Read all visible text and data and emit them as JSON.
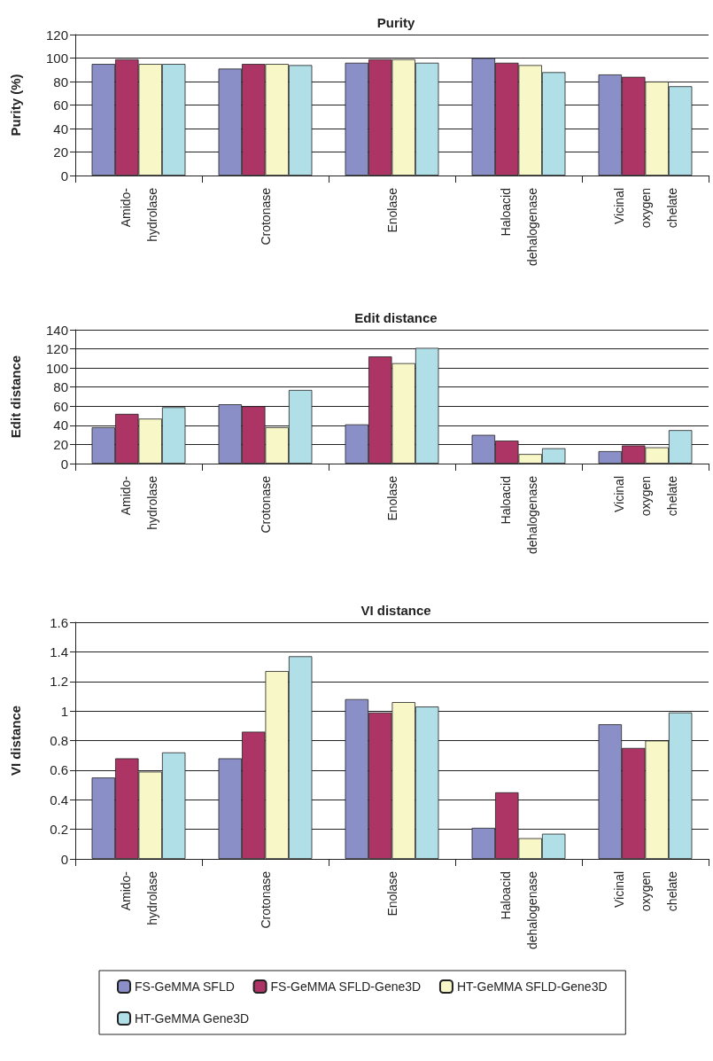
{
  "chart_data": [
    {
      "type": "bar",
      "title": "Purity",
      "ylabel": "Purity (%)",
      "categories": [
        "Amido-\nhydrolase",
        "Crotonase",
        "Enolase",
        "Haloacid\ndehalogenase",
        "Vicinal\noxygen\nchelate"
      ],
      "ylim": [
        0,
        120
      ],
      "yticks": [
        0,
        20,
        40,
        60,
        80,
        100,
        120
      ],
      "grid": "y",
      "legend": false,
      "series": [
        {
          "color": "#8b8fc8",
          "values": [
            95,
            91,
            96,
            100,
            86
          ]
        },
        {
          "color": "#ad3566",
          "values": [
            99,
            95,
            99,
            96,
            84
          ]
        },
        {
          "color": "#f8f7c8",
          "values": [
            95,
            95,
            99,
            94,
            80
          ]
        },
        {
          "color": "#b0dfe8",
          "values": [
            95,
            94,
            96,
            88,
            76
          ]
        }
      ]
    },
    {
      "type": "bar",
      "title": "Edit distance",
      "ylabel": "Edit distance",
      "categories": [
        "Amido-\nhydrolase",
        "Crotonase",
        "Enolase",
        "Haloacid\ndehalogenase",
        "Vicinal\noxygen\nchelate"
      ],
      "ylim": [
        0,
        140
      ],
      "yticks": [
        0,
        20,
        40,
        60,
        80,
        100,
        120,
        140
      ],
      "grid": "y",
      "legend": false,
      "series": [
        {
          "color": "#8b8fc8",
          "values": [
            38,
            62,
            41,
            30,
            13
          ]
        },
        {
          "color": "#ad3566",
          "values": [
            52,
            60,
            112,
            24,
            19
          ]
        },
        {
          "color": "#f8f7c8",
          "values": [
            47,
            38,
            105,
            10,
            17
          ]
        },
        {
          "color": "#b0dfe8",
          "values": [
            59,
            77,
            121,
            16,
            35
          ]
        }
      ]
    },
    {
      "type": "bar",
      "title": "VI distance",
      "ylabel": "VI distance",
      "categories": [
        "Amido-\nhydrolase",
        "Crotonase",
        "Enolase",
        "Haloacid\ndehalogenase",
        "Vicinal\noxygen\nchelate"
      ],
      "ylim": [
        0,
        1.6
      ],
      "yticks": [
        0,
        0.2,
        0.4,
        0.6,
        0.8,
        1,
        1.2,
        1.4,
        1.6
      ],
      "grid": "y",
      "legend": "bottom",
      "series": [
        {
          "name": "FS-GeMMA SFLD",
          "color": "#8b8fc8",
          "values": [
            0.55,
            0.68,
            1.08,
            0.21,
            0.91
          ]
        },
        {
          "name": "FS-GeMMA SFLD-Gene3D",
          "color": "#ad3566",
          "values": [
            0.68,
            0.86,
            0.99,
            0.45,
            0.75
          ]
        },
        {
          "name": "HT-GeMMA SFLD-Gene3D",
          "color": "#f8f7c8",
          "values": [
            0.59,
            1.27,
            1.06,
            0.14,
            0.8
          ]
        },
        {
          "name": "HT-GeMMA Gene3D",
          "color": "#b0dfe8",
          "values": [
            0.72,
            1.37,
            1.03,
            0.17,
            0.99
          ]
        }
      ]
    }
  ]
}
